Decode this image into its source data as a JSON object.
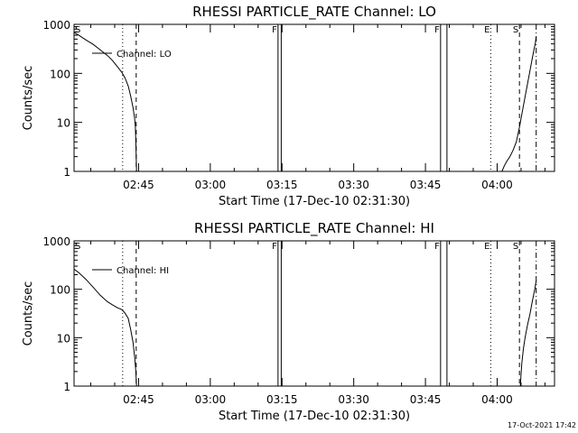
{
  "timestamp": "17-Oct-2021 17:42",
  "chart_data": [
    {
      "type": "line",
      "title": "RHESSI PARTICLE_RATE Channel: LO",
      "xlabel": "Start Time (17-Dec-10 02:31:30)",
      "ylabel": "Counts/sec",
      "y_scale": "log",
      "xlim": [
        "02:31:30",
        "04:12:00"
      ],
      "ylim": [
        1,
        1000
      ],
      "x_ticks": [
        "02:45",
        "03:00",
        "03:15",
        "03:30",
        "03:45",
        "04:00"
      ],
      "y_ticks": [
        "1",
        "10",
        "100",
        "1000"
      ],
      "legend": {
        "label": "Channel: LO",
        "position": "top-left"
      },
      "markers": [
        {
          "label": "S",
          "time": "02:31:30",
          "style": "label"
        },
        {
          "label": "",
          "time": "02:41:40",
          "style": "dotted"
        },
        {
          "label": "",
          "time": "02:44:30",
          "style": "dashed"
        },
        {
          "label": "F",
          "time": "03:14:10",
          "style": "solid"
        },
        {
          "label": "",
          "time": "03:14:50",
          "style": "solid"
        },
        {
          "label": "F",
          "time": "03:48:10",
          "style": "solid"
        },
        {
          "label": "",
          "time": "03:49:30",
          "style": "solid"
        },
        {
          "label": "E",
          "time": "03:58:40",
          "style": "dotted"
        },
        {
          "label": "S",
          "time": "04:04:40",
          "style": "dashed"
        },
        {
          "label": "",
          "time": "04:08:10",
          "style": "dashdot"
        }
      ],
      "series": [
        {
          "name": "Channel: LO",
          "segments": [
            [
              [
                "02:31:30",
                680
              ],
              [
                "02:32:30",
                600
              ],
              [
                "02:34:00",
                480
              ],
              [
                "02:35:30",
                390
              ],
              [
                "02:37:00",
                300
              ],
              [
                "02:38:30",
                230
              ],
              [
                "02:39:30",
                185
              ],
              [
                "02:40:30",
                140
              ],
              [
                "02:41:30",
                105
              ],
              [
                "02:42:10",
                80
              ],
              [
                "02:42:50",
                55
              ],
              [
                "02:43:20",
                35
              ],
              [
                "02:43:50",
                20
              ],
              [
                "02:44:10",
                12
              ],
              [
                "02:44:20",
                8
              ],
              [
                "02:44:28",
                3
              ],
              [
                "02:44:34",
                1
              ]
            ],
            [
              [
                "04:01:00",
                1
              ],
              [
                "04:01:30",
                1.3
              ],
              [
                "04:02:00",
                1.6
              ],
              [
                "04:02:40",
                2
              ],
              [
                "04:03:20",
                2.7
              ],
              [
                "04:04:00",
                4
              ],
              [
                "04:04:40",
                8
              ],
              [
                "04:05:20",
                18
              ],
              [
                "04:06:00",
                40
              ],
              [
                "04:06:40",
                90
              ],
              [
                "04:07:20",
                200
              ],
              [
                "04:08:00",
                420
              ],
              [
                "04:08:10",
                560
              ]
            ]
          ]
        }
      ]
    },
    {
      "type": "line",
      "title": "RHESSI PARTICLE_RATE Channel: HI",
      "xlabel": "Start Time (17-Dec-10 02:31:30)",
      "ylabel": "Counts/sec",
      "y_scale": "log",
      "xlim": [
        "02:31:30",
        "04:12:00"
      ],
      "ylim": [
        1,
        1000
      ],
      "x_ticks": [
        "02:45",
        "03:00",
        "03:15",
        "03:30",
        "03:45",
        "04:00"
      ],
      "y_ticks": [
        "1",
        "10",
        "100",
        "1000"
      ],
      "legend": {
        "label": "Channel: HI",
        "position": "top-left"
      },
      "markers": [
        {
          "label": "S",
          "time": "02:31:30",
          "style": "label"
        },
        {
          "label": "",
          "time": "02:41:40",
          "style": "dotted"
        },
        {
          "label": "",
          "time": "02:44:30",
          "style": "dashed"
        },
        {
          "label": "F",
          "time": "03:14:10",
          "style": "solid"
        },
        {
          "label": "",
          "time": "03:14:50",
          "style": "solid"
        },
        {
          "label": "F",
          "time": "03:48:10",
          "style": "solid"
        },
        {
          "label": "",
          "time": "03:49:30",
          "style": "solid"
        },
        {
          "label": "E",
          "time": "03:58:40",
          "style": "dotted"
        },
        {
          "label": "S",
          "time": "04:04:40",
          "style": "dashed"
        },
        {
          "label": "",
          "time": "04:08:10",
          "style": "dashdot"
        }
      ],
      "series": [
        {
          "name": "Channel: HI",
          "segments": [
            [
              [
                "02:31:30",
                260
              ],
              [
                "02:32:30",
                220
              ],
              [
                "02:34:00",
                160
              ],
              [
                "02:35:30",
                110
              ],
              [
                "02:37:00",
                75
              ],
              [
                "02:38:30",
                55
              ],
              [
                "02:39:30",
                48
              ],
              [
                "02:40:30",
                42
              ],
              [
                "02:41:30",
                38
              ],
              [
                "02:42:10",
                32
              ],
              [
                "02:42:50",
                25
              ],
              [
                "02:43:20",
                15
              ],
              [
                "02:43:50",
                8
              ],
              [
                "02:44:10",
                4
              ],
              [
                "02:44:25",
                2
              ],
              [
                "02:44:34",
                1
              ]
            ],
            [
              [
                "04:04:50",
                1
              ],
              [
                "04:05:10",
                3
              ],
              [
                "04:05:30",
                6
              ],
              [
                "04:05:50",
                10
              ],
              [
                "04:06:20",
                18
              ],
              [
                "04:06:50",
                30
              ],
              [
                "04:07:20",
                55
              ],
              [
                "04:07:50",
                95
              ],
              [
                "04:08:10",
                150
              ]
            ]
          ]
        }
      ]
    }
  ]
}
